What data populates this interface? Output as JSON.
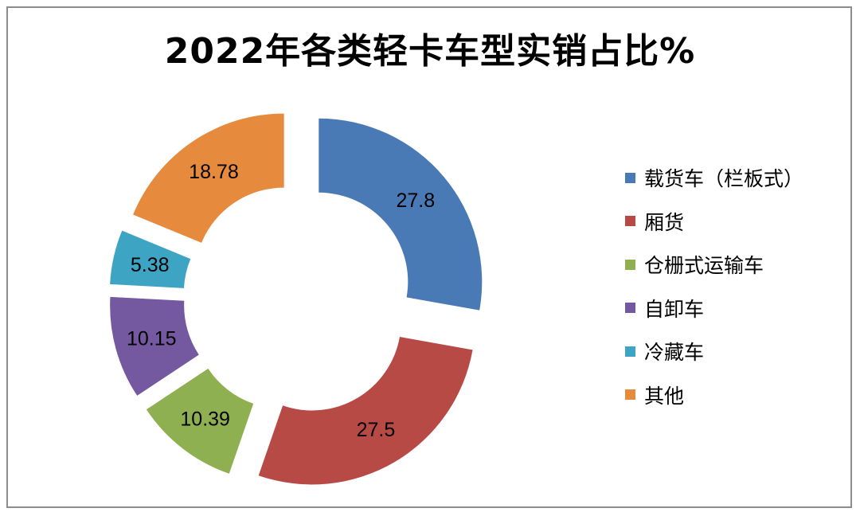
{
  "chart_data": {
    "type": "pie",
    "style": "donut-exploded",
    "title": "2022年各类轻卡车型实销占比%",
    "categories": [
      "载货车（栏板式）",
      "厢货",
      "仓栅式运输车",
      "自卸车",
      "冷藏车",
      "其他"
    ],
    "values": [
      27.8,
      27.5,
      10.39,
      10.15,
      5.38,
      18.78
    ],
    "data_labels": [
      "27.8",
      "27.5",
      "10.39",
      "10.15",
      "5.38",
      "18.78"
    ],
    "colors": [
      "#4a7ab5",
      "#b84a46",
      "#8fb050",
      "#7458a0",
      "#3ea4c4",
      "#e68a3d"
    ],
    "legend_position": "right"
  }
}
